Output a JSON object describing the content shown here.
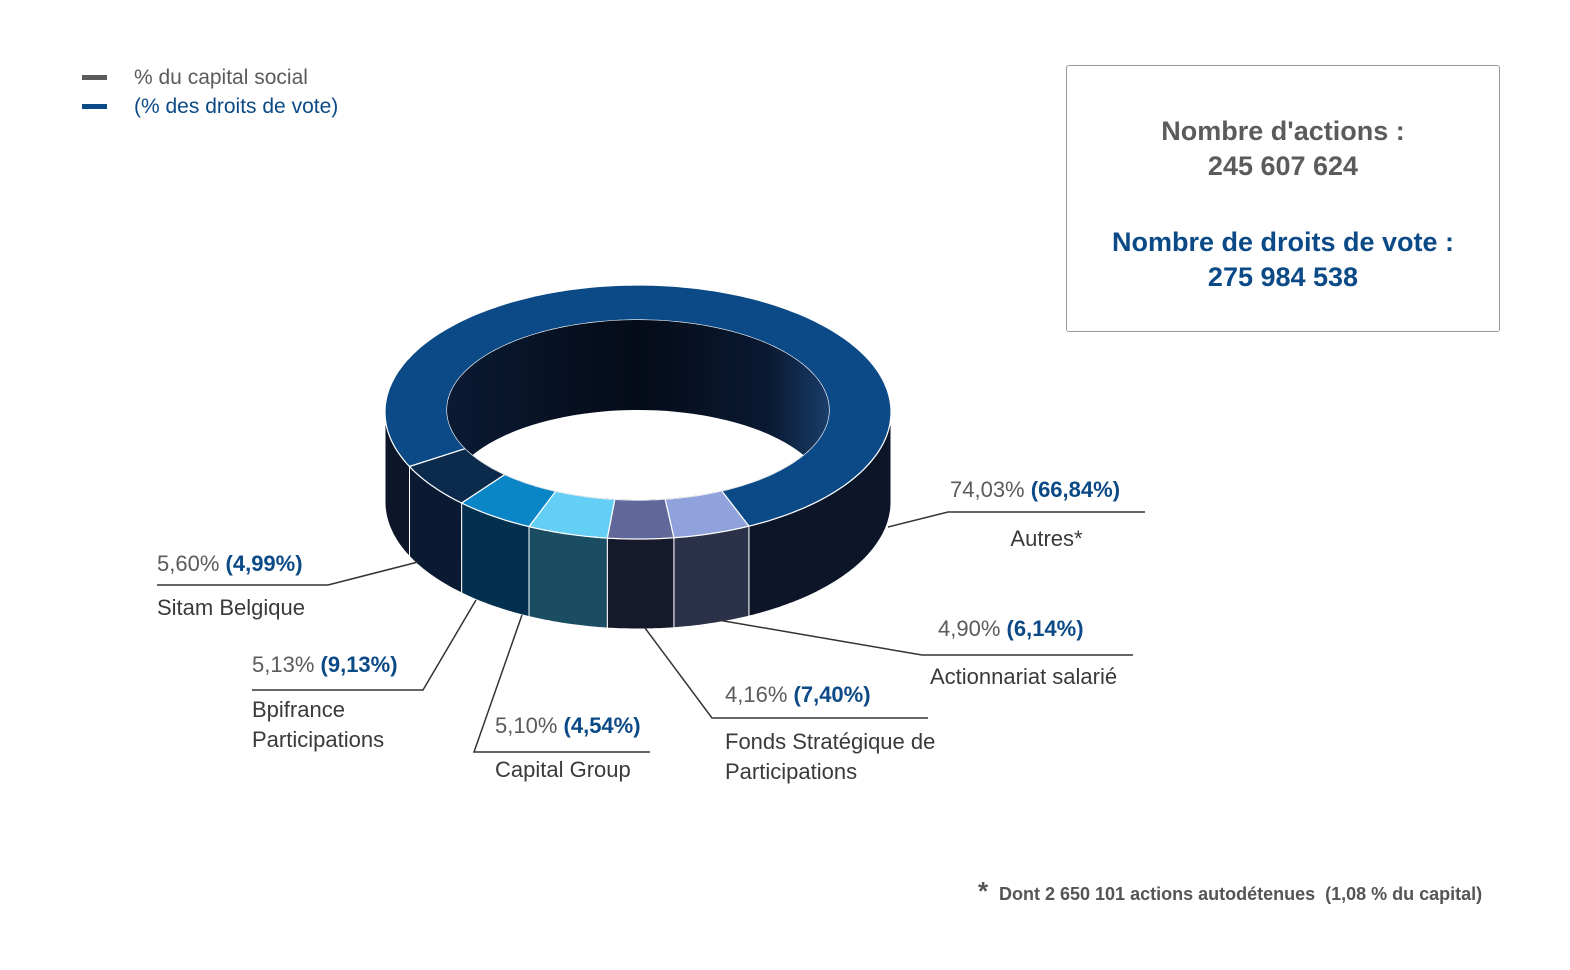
{
  "chart_data": {
    "type": "donut",
    "categories": [
      "Autres*",
      "Actionnariat salarié",
      "Fonds Stratégique de Participations",
      "Capital Group",
      "Bpifrance Participations",
      "Sitam Belgique"
    ],
    "colors": [
      "#0b4a86",
      "#8fa2dc",
      "#5f6898",
      "#63cff5",
      "#0a85c6",
      "#0c2a4c"
    ],
    "side_colors": [
      "#0c1628",
      "#2b3148",
      "#151a2b",
      "#1a4c62",
      "#04304f",
      "#0a1a33"
    ],
    "series": [
      {
        "name": "% du capital social",
        "color": "#5b5b5b",
        "values": [
          74.03,
          4.9,
          4.16,
          5.1,
          5.13,
          5.6
        ],
        "value_labels": [
          "74,03%",
          "4,90%",
          "4,16%",
          "5,10%",
          "5,13%",
          "5,60%"
        ]
      },
      {
        "name": "(% des droits de vote)",
        "color": "#0b4a86",
        "values": [
          66.84,
          6.14,
          7.4,
          4.54,
          9.13,
          4.99
        ],
        "value_labels": [
          "(66,84%)",
          "(6,14%)",
          "(7,40%)",
          "(4,54%)",
          "(9,13%)",
          "(4,99%)"
        ]
      }
    ]
  },
  "info_box": {
    "shares_label": "Nombre d'actions :",
    "shares_value": "245 607 624",
    "votes_label": "Nombre de droits de vote :",
    "votes_value": "275 984 538"
  },
  "footnote": {
    "marker": "*",
    "text": "Dont 2 650 101 actions autodétenues  (1,08 % du capital)"
  }
}
